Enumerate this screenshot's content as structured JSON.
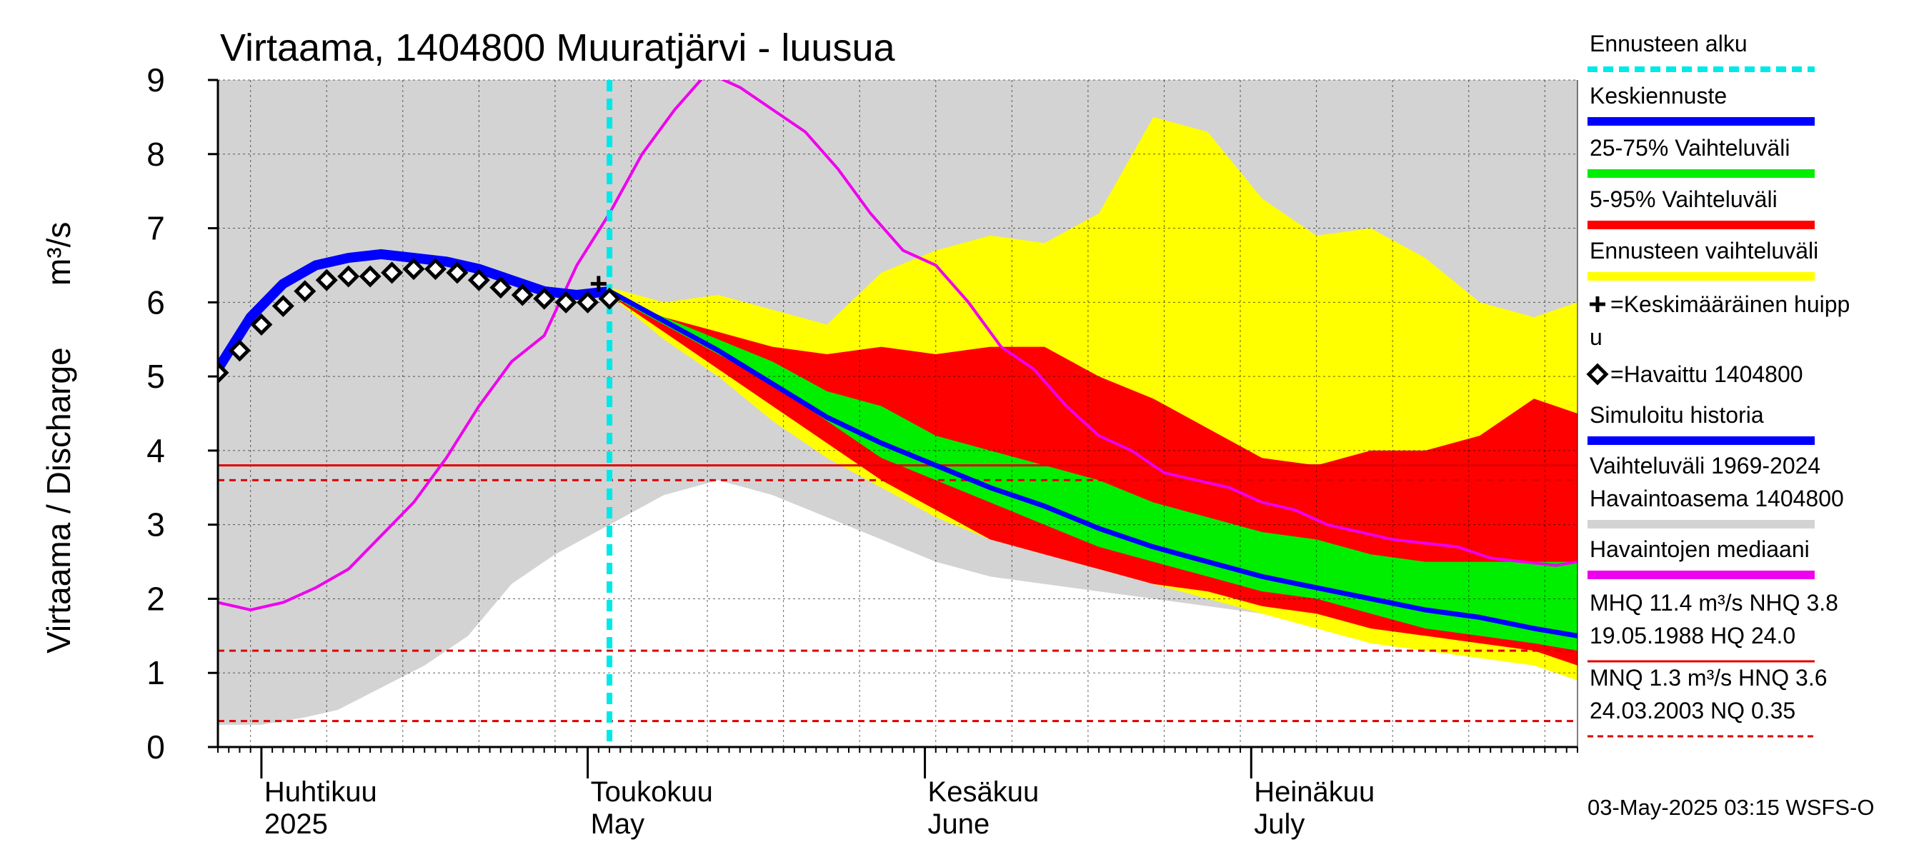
{
  "chart_data": {
    "type": "area",
    "title": "Virtaama, 1404800 Muuratjärvi - luusua",
    "ylabel": "Virtaama / Discharge",
    "yunit": "m³/s",
    "ylim": [
      0,
      9
    ],
    "yticks": [
      "0",
      "1",
      "2",
      "3",
      "4",
      "5",
      "6",
      "7",
      "8",
      "9"
    ],
    "xlim": [
      "2025-03-28",
      "2025-07-31"
    ],
    "grid": true,
    "legend_position": "right",
    "month_labels": [
      {
        "date": "2025-04-01",
        "fi": "Huhtikuu",
        "en": "2025"
      },
      {
        "date": "2025-05-01",
        "fi": "Toukokuu",
        "en": "May"
      },
      {
        "date": "2025-06-01",
        "fi": "Kesäkuu",
        "en": "June"
      },
      {
        "date": "2025-07-01",
        "fi": "Heinäkuu",
        "en": "July"
      }
    ],
    "forecast_start": "2025-05-03",
    "reference_lines": [
      {
        "name": "NHQ",
        "value": 3.8,
        "color": "#e00000",
        "style": "solid"
      },
      {
        "name": "HNQ",
        "value": 3.6,
        "color": "#e00000",
        "style": "dashed"
      },
      {
        "name": "MNQ",
        "value": 1.3,
        "color": "#e00000",
        "style": "dashed"
      },
      {
        "name": "NQ",
        "value": 0.35,
        "color": "#e00000",
        "style": "dashed"
      }
    ],
    "series": [
      {
        "name": "Vaihteluväli 1969-2024 Havaintoasema 1404800",
        "kind": "band",
        "color": "#d3d3d3",
        "x": [
          "2025-03-28",
          "2025-03-30",
          "2025-04-01",
          "2025-04-03",
          "2025-04-05",
          "2025-04-08",
          "2025-04-12",
          "2025-04-16",
          "2025-04-20",
          "2025-04-24",
          "2025-04-28",
          "2025-05-03",
          "2025-05-08",
          "2025-05-13",
          "2025-05-18",
          "2025-05-23",
          "2025-05-28",
          "2025-06-02",
          "2025-06-07",
          "2025-06-12",
          "2025-06-17",
          "2025-06-22",
          "2025-06-27",
          "2025-07-02",
          "2025-07-07",
          "2025-07-12",
          "2025-07-17",
          "2025-07-22",
          "2025-07-27",
          "2025-07-31"
        ],
        "low": [
          0.3,
          0.3,
          0.3,
          0.35,
          0.4,
          0.5,
          0.8,
          1.1,
          1.5,
          2.2,
          2.6,
          3.0,
          3.4,
          3.6,
          3.4,
          3.1,
          2.8,
          2.5,
          2.3,
          2.2,
          2.1,
          2.0,
          1.9,
          1.8,
          1.7,
          1.6,
          1.5,
          1.4,
          1.35,
          1.3
        ],
        "high": [
          9,
          9,
          9,
          9,
          9,
          9,
          9,
          9,
          9,
          9,
          9,
          9,
          9,
          9,
          9,
          9,
          9,
          9,
          9,
          9,
          9,
          9,
          9,
          9,
          9,
          9,
          9,
          9,
          9,
          9
        ]
      },
      {
        "name": "Ennusteen vaihteluväli",
        "kind": "band",
        "color": "#ffff00",
        "x": [
          "2025-05-03",
          "2025-05-08",
          "2025-05-13",
          "2025-05-18",
          "2025-05-23",
          "2025-05-28",
          "2025-06-02",
          "2025-06-07",
          "2025-06-12",
          "2025-06-17",
          "2025-06-22",
          "2025-06-27",
          "2025-07-02",
          "2025-07-07",
          "2025-07-12",
          "2025-07-17",
          "2025-07-22",
          "2025-07-27",
          "2025-07-31"
        ],
        "low": [
          6.1,
          5.5,
          5.0,
          4.4,
          3.9,
          3.5,
          3.1,
          2.8,
          2.6,
          2.4,
          2.2,
          2.0,
          1.8,
          1.6,
          1.4,
          1.3,
          1.2,
          1.1,
          0.9
        ],
        "high": [
          6.2,
          6.0,
          6.1,
          5.9,
          5.7,
          6.4,
          6.7,
          6.9,
          6.8,
          7.2,
          8.5,
          8.3,
          7.4,
          6.9,
          7.0,
          6.6,
          6.0,
          5.8,
          6.0
        ]
      },
      {
        "name": "5-95% Vaihteluväli",
        "kind": "band",
        "color": "#ff0000",
        "x": [
          "2025-05-03",
          "2025-05-08",
          "2025-05-13",
          "2025-05-18",
          "2025-05-23",
          "2025-05-28",
          "2025-06-02",
          "2025-06-07",
          "2025-06-12",
          "2025-06-17",
          "2025-06-22",
          "2025-06-27",
          "2025-07-02",
          "2025-07-07",
          "2025-07-12",
          "2025-07-17",
          "2025-07-22",
          "2025-07-27",
          "2025-07-31"
        ],
        "low": [
          6.1,
          5.6,
          5.1,
          4.6,
          4.1,
          3.6,
          3.2,
          2.8,
          2.6,
          2.4,
          2.2,
          2.1,
          1.9,
          1.8,
          1.6,
          1.5,
          1.4,
          1.3,
          1.1
        ],
        "high": [
          6.1,
          5.8,
          5.6,
          5.4,
          5.3,
          5.4,
          5.3,
          5.4,
          5.4,
          5.0,
          4.7,
          4.3,
          3.9,
          3.8,
          4.0,
          4.0,
          4.2,
          4.7,
          4.5
        ]
      },
      {
        "name": "25-75% Vaihteluväli",
        "kind": "band",
        "color": "#00ee00",
        "x": [
          "2025-05-03",
          "2025-05-08",
          "2025-05-13",
          "2025-05-18",
          "2025-05-23",
          "2025-05-28",
          "2025-06-02",
          "2025-06-07",
          "2025-06-12",
          "2025-06-17",
          "2025-06-22",
          "2025-06-27",
          "2025-07-02",
          "2025-07-07",
          "2025-07-12",
          "2025-07-17",
          "2025-07-22",
          "2025-07-27",
          "2025-07-31"
        ],
        "low": [
          6.1,
          5.7,
          5.3,
          4.9,
          4.4,
          3.9,
          3.6,
          3.3,
          3.0,
          2.7,
          2.5,
          2.3,
          2.1,
          2.0,
          1.8,
          1.6,
          1.5,
          1.4,
          1.3
        ],
        "high": [
          6.1,
          5.8,
          5.5,
          5.2,
          4.8,
          4.6,
          4.2,
          4.0,
          3.8,
          3.6,
          3.3,
          3.1,
          2.9,
          2.8,
          2.6,
          2.5,
          2.5,
          2.5,
          2.5
        ]
      },
      {
        "name": "Havaintojen mediaani",
        "kind": "line",
        "color": "#ee00ee",
        "x": [
          "2025-03-28",
          "2025-03-31",
          "2025-04-03",
          "2025-04-06",
          "2025-04-09",
          "2025-04-12",
          "2025-04-15",
          "2025-04-18",
          "2025-04-21",
          "2025-04-24",
          "2025-04-27",
          "2025-04-30",
          "2025-05-03",
          "2025-05-06",
          "2025-05-09",
          "2025-05-12",
          "2025-05-15",
          "2025-05-18",
          "2025-05-21",
          "2025-05-24",
          "2025-05-27",
          "2025-05-30",
          "2025-06-02",
          "2025-06-05",
          "2025-06-08",
          "2025-06-11",
          "2025-06-14",
          "2025-06-17",
          "2025-06-20",
          "2025-06-23",
          "2025-06-26",
          "2025-06-29",
          "2025-07-02",
          "2025-07-05",
          "2025-07-08",
          "2025-07-11",
          "2025-07-14",
          "2025-07-17",
          "2025-07-20",
          "2025-07-23",
          "2025-07-26",
          "2025-07-29",
          "2025-07-31"
        ],
        "values": [
          1.95,
          1.85,
          1.95,
          2.15,
          2.4,
          2.85,
          3.3,
          3.9,
          4.6,
          5.2,
          5.55,
          6.5,
          7.2,
          8.0,
          8.6,
          9.1,
          8.9,
          8.6,
          8.3,
          7.8,
          7.2,
          6.7,
          6.5,
          6.0,
          5.4,
          5.1,
          4.6,
          4.2,
          4.0,
          3.7,
          3.6,
          3.5,
          3.3,
          3.2,
          3.0,
          2.9,
          2.8,
          2.75,
          2.7,
          2.55,
          2.5,
          2.45,
          2.5
        ]
      },
      {
        "name": "Simuloitu historia",
        "kind": "line",
        "color": "#0000ff",
        "x": [
          "2025-03-28",
          "2025-03-31",
          "2025-04-03",
          "2025-04-06",
          "2025-04-09",
          "2025-04-12",
          "2025-04-15",
          "2025-04-18",
          "2025-04-21",
          "2025-04-24",
          "2025-04-27",
          "2025-04-30",
          "2025-05-03"
        ],
        "values": [
          5.1,
          5.8,
          6.25,
          6.5,
          6.6,
          6.65,
          6.6,
          6.55,
          6.45,
          6.3,
          6.15,
          6.1,
          6.15
        ]
      },
      {
        "name": "Keskiennuste",
        "kind": "line",
        "color": "#0000ff",
        "x": [
          "2025-05-03",
          "2025-05-08",
          "2025-05-13",
          "2025-05-18",
          "2025-05-23",
          "2025-05-28",
          "2025-06-02",
          "2025-06-07",
          "2025-06-12",
          "2025-06-17",
          "2025-06-22",
          "2025-06-27",
          "2025-07-02",
          "2025-07-07",
          "2025-07-12",
          "2025-07-17",
          "2025-07-22",
          "2025-07-27",
          "2025-07-31"
        ],
        "values": [
          6.15,
          5.75,
          5.35,
          4.9,
          4.45,
          4.1,
          3.8,
          3.5,
          3.25,
          2.95,
          2.7,
          2.5,
          2.3,
          2.15,
          2.0,
          1.85,
          1.75,
          1.6,
          1.5
        ]
      },
      {
        "name": "Havaittu 1404800",
        "kind": "markers",
        "color": "#000000",
        "x": [
          "2025-03-28",
          "2025-03-30",
          "2025-04-01",
          "2025-04-03",
          "2025-04-05",
          "2025-04-07",
          "2025-04-09",
          "2025-04-11",
          "2025-04-13",
          "2025-04-15",
          "2025-04-17",
          "2025-04-19",
          "2025-04-21",
          "2025-04-23",
          "2025-04-25",
          "2025-04-27",
          "2025-04-29",
          "2025-05-01",
          "2025-05-03"
        ],
        "values": [
          5.05,
          5.35,
          5.7,
          5.95,
          6.15,
          6.3,
          6.35,
          6.35,
          6.4,
          6.45,
          6.45,
          6.4,
          6.3,
          6.2,
          6.1,
          6.05,
          6.0,
          6.0,
          6.05
        ]
      },
      {
        "name": "Keskimääräinen huippu",
        "kind": "marker",
        "color": "#000000",
        "x": [
          "2025-05-02"
        ],
        "values": [
          6.25
        ]
      }
    ]
  },
  "legend": {
    "items": [
      {
        "label": "Ennusteen alku",
        "kind": "dash-line",
        "color": "#00e8e8"
      },
      {
        "label": "Keskiennuste",
        "kind": "line",
        "color": "#0000ff"
      },
      {
        "label": "25-75% Vaihteluväli",
        "kind": "line",
        "color": "#00ee00"
      },
      {
        "label": "5-95% Vaihteluväli",
        "kind": "line",
        "color": "#ff0000"
      },
      {
        "label": "Ennusteen vaihteluväli",
        "kind": "line",
        "color": "#ffff00"
      },
      {
        "label": "=Keskimääräinen huipp",
        "label2": "u",
        "kind": "plus"
      },
      {
        "label": "=Havaittu 1404800",
        "kind": "diamond"
      },
      {
        "label": "Simuloitu historia",
        "kind": "line",
        "color": "#0000ff"
      },
      {
        "label": "Vaihteluväli 1969-2024",
        "label2": " Havaintoasema 1404800",
        "kind": "line",
        "color": "#d3d3d3"
      },
      {
        "label": "Havaintojen mediaani",
        "kind": "line",
        "color": "#ee00ee"
      },
      {
        "label": "MHQ 11.4 m³/s NHQ  3.8",
        "label2": "19.05.1988 HQ 24.0",
        "kind": "line",
        "color": "#e00000"
      },
      {
        "label": "MNQ  1.3 m³/s HNQ  3.6",
        "label2": "24.03.2003 NQ 0.35",
        "kind": "dash-line",
        "color": "#e00000"
      }
    ]
  },
  "footer": "03-May-2025 03:15 WSFS-O"
}
